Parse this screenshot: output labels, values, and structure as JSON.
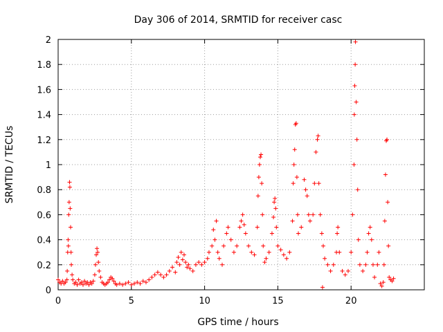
{
  "chart_data": {
    "type": "scatter",
    "title": "Day 306 of 2014, SRMTID for receiver casc",
    "xlabel": "GPS time / hours",
    "ylabel": "SRMTID / TECUs",
    "xlim": [
      0,
      25
    ],
    "ylim": [
      0,
      2
    ],
    "xticks": [
      0,
      5,
      10,
      15,
      20
    ],
    "xtick_labels": [
      "0",
      "5",
      "10",
      "15",
      "20"
    ],
    "yticks": [
      0,
      0.2,
      0.4,
      0.6,
      0.8,
      1,
      1.2,
      1.4,
      1.6,
      1.8,
      2
    ],
    "ytick_labels": [
      "0",
      "0.2",
      "0.4",
      "0.6",
      "0.8",
      "1",
      "1.2",
      "1.4",
      "1.6",
      "1.8",
      "2"
    ],
    "grid": true,
    "marker": "+",
    "color": "#ff0000",
    "series": [
      {
        "name": "SRMTID",
        "points": [
          [
            0.0,
            0.08
          ],
          [
            0.1,
            0.06
          ],
          [
            0.2,
            0.05
          ],
          [
            0.3,
            0.07
          ],
          [
            0.4,
            0.05
          ],
          [
            0.5,
            0.06
          ],
          [
            0.6,
            0.08
          ],
          [
            0.62,
            0.15
          ],
          [
            0.65,
            0.3
          ],
          [
            0.68,
            0.4
          ],
          [
            0.7,
            0.35
          ],
          [
            0.72,
            0.6
          ],
          [
            0.75,
            0.7
          ],
          [
            0.78,
            0.86
          ],
          [
            0.8,
            0.82
          ],
          [
            0.82,
            0.65
          ],
          [
            0.85,
            0.5
          ],
          [
            0.88,
            0.3
          ],
          [
            0.9,
            0.2
          ],
          [
            0.95,
            0.12
          ],
          [
            1.0,
            0.08
          ],
          [
            1.1,
            0.05
          ],
          [
            1.2,
            0.06
          ],
          [
            1.3,
            0.04
          ],
          [
            1.4,
            0.08
          ],
          [
            1.5,
            0.05
          ],
          [
            1.6,
            0.06
          ],
          [
            1.7,
            0.04
          ],
          [
            1.8,
            0.07
          ],
          [
            1.9,
            0.05
          ],
          [
            2.0,
            0.06
          ],
          [
            2.1,
            0.04
          ],
          [
            2.2,
            0.06
          ],
          [
            2.3,
            0.05
          ],
          [
            2.4,
            0.07
          ],
          [
            2.5,
            0.12
          ],
          [
            2.55,
            0.2
          ],
          [
            2.6,
            0.28
          ],
          [
            2.65,
            0.33
          ],
          [
            2.7,
            0.3
          ],
          [
            2.75,
            0.22
          ],
          [
            2.8,
            0.15
          ],
          [
            2.9,
            0.1
          ],
          [
            3.0,
            0.06
          ],
          [
            3.1,
            0.05
          ],
          [
            3.2,
            0.04
          ],
          [
            3.3,
            0.05
          ],
          [
            3.4,
            0.06
          ],
          [
            3.5,
            0.08
          ],
          [
            3.6,
            0.1
          ],
          [
            3.7,
            0.09
          ],
          [
            3.8,
            0.07
          ],
          [
            3.9,
            0.05
          ],
          [
            4.0,
            0.04
          ],
          [
            4.2,
            0.05
          ],
          [
            4.4,
            0.04
          ],
          [
            4.6,
            0.05
          ],
          [
            4.8,
            0.06
          ],
          [
            5.0,
            0.04
          ],
          [
            5.2,
            0.05
          ],
          [
            5.4,
            0.06
          ],
          [
            5.6,
            0.05
          ],
          [
            5.8,
            0.07
          ],
          [
            6.0,
            0.06
          ],
          [
            6.2,
            0.08
          ],
          [
            6.4,
            0.1
          ],
          [
            6.6,
            0.12
          ],
          [
            6.8,
            0.14
          ],
          [
            7.0,
            0.12
          ],
          [
            7.2,
            0.1
          ],
          [
            7.4,
            0.12
          ],
          [
            7.6,
            0.15
          ],
          [
            7.8,
            0.18
          ],
          [
            8.0,
            0.14
          ],
          [
            8.1,
            0.22
          ],
          [
            8.2,
            0.26
          ],
          [
            8.3,
            0.2
          ],
          [
            8.4,
            0.3
          ],
          [
            8.5,
            0.24
          ],
          [
            8.6,
            0.28
          ],
          [
            8.7,
            0.22
          ],
          [
            8.8,
            0.18
          ],
          [
            8.9,
            0.2
          ],
          [
            9.0,
            0.17
          ],
          [
            9.2,
            0.15
          ],
          [
            9.4,
            0.2
          ],
          [
            9.6,
            0.22
          ],
          [
            9.8,
            0.2
          ],
          [
            10.0,
            0.22
          ],
          [
            10.2,
            0.25
          ],
          [
            10.3,
            0.3
          ],
          [
            10.5,
            0.35
          ],
          [
            10.6,
            0.48
          ],
          [
            10.7,
            0.4
          ],
          [
            10.8,
            0.55
          ],
          [
            10.9,
            0.3
          ],
          [
            11.0,
            0.25
          ],
          [
            11.2,
            0.2
          ],
          [
            11.3,
            0.35
          ],
          [
            11.5,
            0.45
          ],
          [
            11.6,
            0.5
          ],
          [
            11.8,
            0.4
          ],
          [
            12.0,
            0.3
          ],
          [
            12.2,
            0.35
          ],
          [
            12.4,
            0.5
          ],
          [
            12.5,
            0.55
          ],
          [
            12.6,
            0.6
          ],
          [
            12.7,
            0.52
          ],
          [
            12.8,
            0.45
          ],
          [
            13.0,
            0.35
          ],
          [
            13.2,
            0.3
          ],
          [
            13.4,
            0.28
          ],
          [
            13.6,
            0.5
          ],
          [
            13.65,
            0.75
          ],
          [
            13.7,
            0.9
          ],
          [
            13.75,
            1.0
          ],
          [
            13.8,
            1.06
          ],
          [
            13.85,
            1.08
          ],
          [
            13.9,
            0.85
          ],
          [
            13.95,
            0.6
          ],
          [
            14.0,
            0.35
          ],
          [
            14.1,
            0.22
          ],
          [
            14.2,
            0.25
          ],
          [
            14.4,
            0.3
          ],
          [
            14.6,
            0.45
          ],
          [
            14.7,
            0.58
          ],
          [
            14.75,
            0.7
          ],
          [
            14.8,
            0.73
          ],
          [
            14.85,
            0.65
          ],
          [
            14.9,
            0.5
          ],
          [
            15.0,
            0.35
          ],
          [
            15.2,
            0.32
          ],
          [
            15.4,
            0.28
          ],
          [
            15.6,
            0.25
          ],
          [
            15.8,
            0.3
          ],
          [
            16.0,
            0.55
          ],
          [
            16.05,
            0.85
          ],
          [
            16.1,
            1.0
          ],
          [
            16.15,
            1.12
          ],
          [
            16.2,
            1.32
          ],
          [
            16.25,
            1.33
          ],
          [
            16.3,
            0.9
          ],
          [
            16.35,
            0.6
          ],
          [
            16.4,
            0.45
          ],
          [
            16.6,
            0.5
          ],
          [
            16.8,
            0.88
          ],
          [
            16.9,
            0.8
          ],
          [
            17.0,
            0.75
          ],
          [
            17.1,
            0.6
          ],
          [
            17.2,
            0.55
          ],
          [
            17.4,
            0.6
          ],
          [
            17.5,
            0.85
          ],
          [
            17.6,
            1.1
          ],
          [
            17.7,
            1.2
          ],
          [
            17.75,
            1.23
          ],
          [
            17.8,
            0.85
          ],
          [
            17.9,
            0.6
          ],
          [
            18.0,
            0.45
          ],
          [
            18.05,
            0.02
          ],
          [
            18.1,
            0.35
          ],
          [
            18.2,
            0.25
          ],
          [
            18.4,
            0.2
          ],
          [
            18.6,
            0.15
          ],
          [
            18.8,
            0.2
          ],
          [
            19.0,
            0.3
          ],
          [
            19.05,
            0.45
          ],
          [
            19.1,
            0.5
          ],
          [
            19.2,
            0.3
          ],
          [
            19.4,
            0.15
          ],
          [
            19.6,
            0.12
          ],
          [
            19.8,
            0.15
          ],
          [
            20.0,
            0.3
          ],
          [
            20.1,
            0.6
          ],
          [
            20.2,
            1.0
          ],
          [
            20.22,
            1.4
          ],
          [
            20.25,
            1.63
          ],
          [
            20.28,
            1.8
          ],
          [
            20.3,
            1.98
          ],
          [
            20.35,
            1.5
          ],
          [
            20.4,
            1.2
          ],
          [
            20.45,
            0.8
          ],
          [
            20.5,
            0.4
          ],
          [
            20.6,
            0.2
          ],
          [
            20.8,
            0.15
          ],
          [
            21.0,
            0.2
          ],
          [
            21.1,
            0.3
          ],
          [
            21.2,
            0.45
          ],
          [
            21.3,
            0.5
          ],
          [
            21.4,
            0.4
          ],
          [
            21.5,
            0.2
          ],
          [
            21.6,
            0.1
          ],
          [
            21.8,
            0.2
          ],
          [
            21.9,
            0.3
          ],
          [
            22.0,
            0.05
          ],
          [
            22.1,
            0.03
          ],
          [
            22.2,
            0.06
          ],
          [
            22.25,
            0.2
          ],
          [
            22.3,
            0.55
          ],
          [
            22.35,
            0.92
          ],
          [
            22.4,
            1.19
          ],
          [
            22.45,
            1.2
          ],
          [
            22.5,
            0.7
          ],
          [
            22.55,
            0.35
          ],
          [
            22.6,
            0.1
          ],
          [
            22.7,
            0.08
          ],
          [
            22.8,
            0.07
          ],
          [
            22.9,
            0.09
          ]
        ]
      }
    ]
  }
}
